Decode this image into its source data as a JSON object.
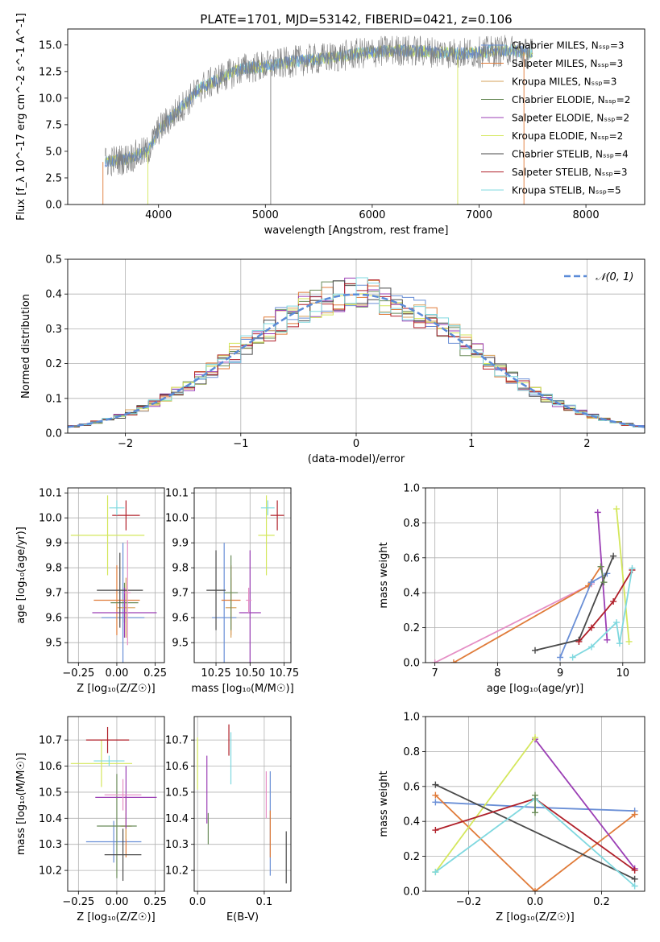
{
  "figure_title": "PLATE=1701, MJD=53142, FIBERID=0421, z=0.106",
  "chart_data": [
    {
      "id": "spectrum",
      "type": "line",
      "title": "PLATE=1701, MJD=53142, FIBERID=0421, z=0.106",
      "xlabel": "wavelength [Angstrom, rest frame]",
      "ylabel": "Flux [f_λ 10^-17 erg cm^-2 s^-1 A^-1]",
      "xlim": [
        3150,
        8550
      ],
      "ylim": [
        0,
        16.5
      ],
      "xticks": [
        4000,
        5000,
        6000,
        7000,
        8000
      ],
      "yticks": [
        0.0,
        2.5,
        5.0,
        7.5,
        10.0,
        12.5,
        15.0
      ],
      "grid": false,
      "legend_position": "right",
      "data_trace": {
        "color": "#808080",
        "x": [
          3500,
          3700,
          3900,
          4000,
          4200,
          4400,
          4600,
          4800,
          5000,
          5300,
          5600,
          5900,
          6200,
          6500,
          6800,
          7000,
          7300,
          7500
        ],
        "y": [
          4.0,
          4.3,
          5.0,
          7.0,
          9.0,
          11.0,
          12.0,
          12.8,
          13.0,
          13.5,
          13.8,
          14.2,
          14.5,
          14.4,
          14.2,
          14.3,
          14.5,
          14.2
        ]
      },
      "series": [
        {
          "name": "Chabrier MILES, N_SSP=3",
          "color": "#6a8fd6"
        },
        {
          "name": "Salpeter MILES, N_SSP=3",
          "color": "#e07b39"
        },
        {
          "name": "Kroupa MILES, N_SSP=3",
          "color": "#d6a05a"
        },
        {
          "name": "Chabrier ELODIE, N_SSP=2",
          "color": "#6b8c5a"
        },
        {
          "name": "Salpeter ELODIE, N_SSP=2",
          "color": "#9b3fb5"
        },
        {
          "name": "Kroupa ELODIE, N_SSP=2",
          "color": "#d4e75c"
        },
        {
          "name": "Chabrier STELIB, N_SSP=4",
          "color": "#4a4a4a"
        },
        {
          "name": "Salpeter STELIB, N_SSP=3",
          "color": "#b0202a"
        },
        {
          "name": "Kroupa STELIB, N_SSP=5",
          "color": "#7fd8df"
        }
      ]
    },
    {
      "id": "residuals",
      "type": "histogram",
      "xlabel": "(data-model)/error",
      "ylabel": "Normed distribution",
      "xlim": [
        -2.5,
        2.5
      ],
      "ylim": [
        0,
        0.5
      ],
      "xticks": [
        -2,
        -1,
        0,
        1,
        2
      ],
      "yticks": [
        0.0,
        0.1,
        0.2,
        0.3,
        0.4,
        0.5
      ],
      "grid": true,
      "legend_position": "top-right",
      "reference_curve": {
        "name": "𝒩(0, 1)",
        "color": "#5b8bd8",
        "mean": 0,
        "sigma": 1
      },
      "bin_width": 0.1,
      "bin_start": -2.5
    },
    {
      "id": "age_vs_Z",
      "type": "errorbar",
      "xlabel": "Z [log10(Z/Z☉)]",
      "ylabel": "age [log10(age/yr)]",
      "xlim": [
        -0.32,
        0.31
      ],
      "ylim": [
        9.42,
        10.12
      ],
      "xticks": [
        -0.25,
        0.0,
        0.25
      ],
      "yticks": [
        9.5,
        9.6,
        9.7,
        9.8,
        9.9,
        10.0,
        10.1
      ],
      "grid": true,
      "points": [
        {
          "color": "#6a8fd6",
          "x": 0.04,
          "y": 9.6,
          "xerr": 0.14,
          "yerr": 0.3
        },
        {
          "color": "#e07b39",
          "x": 0.0,
          "y": 9.67,
          "xerr": 0.15,
          "yerr": 0.14
        },
        {
          "color": "#d6a05a",
          "x": 0.06,
          "y": 9.64,
          "xerr": 0.06,
          "yerr": 0.12
        },
        {
          "color": "#6b8c5a",
          "x": 0.05,
          "y": 9.66,
          "xerr": 0.09,
          "yerr": 0.08
        },
        {
          "color": "#9b3fb5",
          "x": 0.05,
          "y": 9.62,
          "xerr": 0.21,
          "yerr": 0.1
        },
        {
          "color": "#d4e75c",
          "x": -0.06,
          "y": 9.93,
          "xerr": 0.24,
          "yerr": 0.16
        },
        {
          "color": "#4a4a4a",
          "x": 0.02,
          "y": 9.71,
          "xerr": 0.15,
          "yerr": 0.15
        },
        {
          "color": "#b0202a",
          "x": 0.06,
          "y": 10.01,
          "xerr": 0.09,
          "yerr": 0.06
        },
        {
          "color": "#7fd8df",
          "x": 0.0,
          "y": 10.04,
          "xerr": 0.05,
          "yerr": 0.03
        },
        {
          "color": "#e58ec5",
          "x": 0.07,
          "y": 9.7,
          "xerr": 0.02,
          "yerr": 0.21
        }
      ]
    },
    {
      "id": "age_vs_mass",
      "type": "errorbar",
      "xlabel": "mass [log10(M/M☉)]",
      "ylabel": "",
      "xlim": [
        10.09,
        10.8
      ],
      "ylim": [
        9.42,
        10.12
      ],
      "xticks": [
        10.25,
        10.5,
        10.75
      ],
      "yticks": [
        9.5,
        9.6,
        9.7,
        9.8,
        9.9,
        10.0,
        10.1
      ],
      "grid": true,
      "points": [
        {
          "color": "#6a8fd6",
          "x": 10.31,
          "y": 9.6,
          "xerr": 0.09,
          "yerr": 0.3
        },
        {
          "color": "#e07b39",
          "x": 10.36,
          "y": 9.67,
          "xerr": 0.07,
          "yerr": 0.14
        },
        {
          "color": "#d6a05a",
          "x": 10.36,
          "y": 9.64,
          "xerr": 0.04,
          "yerr": 0.12
        },
        {
          "color": "#6b8c5a",
          "x": 10.36,
          "y": 9.7,
          "xerr": 0.05,
          "yerr": 0.15
        },
        {
          "color": "#9b3fb5",
          "x": 10.5,
          "y": 9.62,
          "xerr": 0.08,
          "yerr": 0.25
        },
        {
          "color": "#d4e75c",
          "x": 10.62,
          "y": 9.93,
          "xerr": 0.06,
          "yerr": 0.16
        },
        {
          "color": "#4a4a4a",
          "x": 10.25,
          "y": 9.71,
          "xerr": 0.07,
          "yerr": 0.16
        },
        {
          "color": "#b0202a",
          "x": 10.7,
          "y": 10.01,
          "xerr": 0.05,
          "yerr": 0.06
        },
        {
          "color": "#7fd8df",
          "x": 10.63,
          "y": 10.04,
          "xerr": 0.05,
          "yerr": 0.03
        },
        {
          "color": "#e58ec5",
          "x": 10.49,
          "y": 9.67,
          "xerr": 0.02,
          "yerr": 0.05
        }
      ]
    },
    {
      "id": "weight_vs_age",
      "type": "line",
      "xlabel": "age [log10(age/yr)]",
      "ylabel": "mass weight",
      "xlim": [
        6.85,
        10.35
      ],
      "ylim": [
        0,
        1
      ],
      "xticks": [
        7,
        8,
        9,
        10
      ],
      "yticks": [
        0.0,
        0.2,
        0.4,
        0.6,
        0.8,
        1.0
      ],
      "grid": true,
      "series": [
        {
          "color": "#e58ec5",
          "x": [
            7.0,
            9.5
          ],
          "y": [
            0.0,
            0.45
          ]
        },
        {
          "color": "#e07b39",
          "x": [
            7.3,
            9.45,
            9.65
          ],
          "y": [
            0.0,
            0.44,
            0.55
          ]
        },
        {
          "color": "#6a8fd6",
          "x": [
            9.0,
            9.5,
            9.75
          ],
          "y": [
            0.03,
            0.46,
            0.51
          ]
        },
        {
          "color": "#9b3fb5",
          "x": [
            9.6,
            9.75
          ],
          "y": [
            0.86,
            0.13
          ]
        },
        {
          "color": "#d4e75c",
          "x": [
            9.9,
            10.1
          ],
          "y": [
            0.88,
            0.12
          ]
        },
        {
          "color": "#4a4a4a",
          "x": [
            8.6,
            9.3,
            9.85
          ],
          "y": [
            0.07,
            0.13,
            0.61
          ]
        },
        {
          "color": "#b0202a",
          "x": [
            9.3,
            9.5,
            9.85,
            10.15
          ],
          "y": [
            0.12,
            0.2,
            0.35,
            0.53
          ]
        },
        {
          "color": "#7fd8df",
          "x": [
            9.2,
            9.5,
            9.9,
            9.95,
            10.15
          ],
          "y": [
            0.03,
            0.09,
            0.23,
            0.11,
            0.54
          ]
        },
        {
          "color": "#6b8c5a",
          "x": [
            9.65,
            9.7
          ],
          "y": [
            0.55,
            0.46
          ]
        }
      ]
    },
    {
      "id": "mass_vs_Z",
      "type": "errorbar",
      "xlabel": "Z [log10(Z/Z☉)]",
      "ylabel": "mass [log10(M/M☉)]",
      "xlim": [
        -0.32,
        0.31
      ],
      "ylim": [
        10.12,
        10.79
      ],
      "xticks": [
        -0.25,
        0.0,
        0.25
      ],
      "yticks": [
        10.2,
        10.3,
        10.4,
        10.5,
        10.6,
        10.7
      ],
      "grid": true,
      "points": [
        {
          "color": "#6a8fd6",
          "x": -0.02,
          "y": 10.31,
          "xerr": 0.18,
          "yerr": 0.08
        },
        {
          "color": "#e07b39",
          "x": 0.06,
          "y": 10.37,
          "xerr": 0.03,
          "yerr": 0.12
        },
        {
          "color": "#d6a05a",
          "x": 0.06,
          "y": 10.37,
          "xerr": 0.04,
          "yerr": 0.05
        },
        {
          "color": "#6b8c5a",
          "x": 0.0,
          "y": 10.37,
          "xerr": 0.13,
          "yerr": 0.2
        },
        {
          "color": "#9b3fb5",
          "x": 0.06,
          "y": 10.48,
          "xerr": 0.2,
          "yerr": 0.12
        },
        {
          "color": "#d4e75c",
          "x": -0.1,
          "y": 10.61,
          "xerr": 0.2,
          "yerr": 0.09
        },
        {
          "color": "#4a4a4a",
          "x": 0.04,
          "y": 10.26,
          "xerr": 0.12,
          "yerr": 0.1
        },
        {
          "color": "#b0202a",
          "x": -0.06,
          "y": 10.7,
          "xerr": 0.14,
          "yerr": 0.05
        },
        {
          "color": "#7fd8df",
          "x": -0.05,
          "y": 10.62,
          "xerr": 0.1,
          "yerr": 0.02
        },
        {
          "color": "#e58ec5",
          "x": 0.04,
          "y": 10.49,
          "xerr": 0.12,
          "yerr": 0.06
        }
      ]
    },
    {
      "id": "mass_vs_EBV",
      "type": "errorbar",
      "xlabel": "E(B-V)",
      "ylabel": "",
      "xlim": [
        -0.005,
        0.14
      ],
      "ylim": [
        10.12,
        10.79
      ],
      "xticks": [
        0.0,
        0.1
      ],
      "yticks": [
        10.2,
        10.3,
        10.4,
        10.5,
        10.6,
        10.7
      ],
      "grid": true,
      "points": [
        {
          "color": "#6a8fd6",
          "x": 0.109,
          "y": 10.38,
          "xerr": 0,
          "yerr": 0.2
        },
        {
          "color": "#e07b39",
          "x": 0.109,
          "y": 10.34,
          "xerr": 0,
          "yerr": 0.09
        },
        {
          "color": "#6b8c5a",
          "x": 0.016,
          "y": 10.36,
          "xerr": 0,
          "yerr": 0.06
        },
        {
          "color": "#9b3fb5",
          "x": 0.014,
          "y": 10.51,
          "xerr": 0,
          "yerr": 0.13
        },
        {
          "color": "#d4e75c",
          "x": 0.0,
          "y": 10.61,
          "xerr": 0,
          "yerr": 0.1
        },
        {
          "color": "#4a4a4a",
          "x": 0.133,
          "y": 10.25,
          "xerr": 0,
          "yerr": 0.1
        },
        {
          "color": "#b0202a",
          "x": 0.047,
          "y": 10.7,
          "xerr": 0,
          "yerr": 0.06
        },
        {
          "color": "#7fd8df",
          "x": 0.05,
          "y": 10.63,
          "xerr": 0,
          "yerr": 0.1
        },
        {
          "color": "#e58ec5",
          "x": 0.103,
          "y": 10.49,
          "xerr": 0,
          "yerr": 0.09
        }
      ]
    },
    {
      "id": "weight_vs_Z",
      "type": "line",
      "xlabel": "Z [log10(Z/Z☉)]",
      "ylabel": "mass weight",
      "xlim": [
        -0.33,
        0.33
      ],
      "ylim": [
        0,
        1
      ],
      "xticks": [
        -0.2,
        0.0,
        0.2
      ],
      "yticks": [
        0.0,
        0.2,
        0.4,
        0.6,
        0.8,
        1.0
      ],
      "grid": true,
      "series": [
        {
          "color": "#6a8fd6",
          "x": [
            -0.3,
            0.0,
            0.3
          ],
          "y": [
            0.51,
            0.48,
            0.46
          ]
        },
        {
          "color": "#e07b39",
          "x": [
            -0.3,
            0.0,
            0.3
          ],
          "y": [
            0.55,
            0.0,
            0.44
          ]
        },
        {
          "color": "#9b3fb5",
          "x": [
            0.0,
            0.3
          ],
          "y": [
            0.87,
            0.13
          ]
        },
        {
          "color": "#d4e75c",
          "x": [
            -0.3,
            0.0
          ],
          "y": [
            0.11,
            0.88
          ]
        },
        {
          "color": "#4a4a4a",
          "x": [
            -0.3,
            0.3
          ],
          "y": [
            0.61,
            0.07
          ]
        },
        {
          "color": "#b0202a",
          "x": [
            -0.3,
            0.0,
            0.3
          ],
          "y": [
            0.35,
            0.53,
            0.12
          ]
        },
        {
          "color": "#7fd8df",
          "x": [
            -0.3,
            0.0,
            0.3
          ],
          "y": [
            0.11,
            0.53,
            0.03
          ]
        },
        {
          "color": "#6b8c5a",
          "x": [
            0.0,
            0.0
          ],
          "y": [
            0.45,
            0.55
          ]
        }
      ]
    }
  ]
}
